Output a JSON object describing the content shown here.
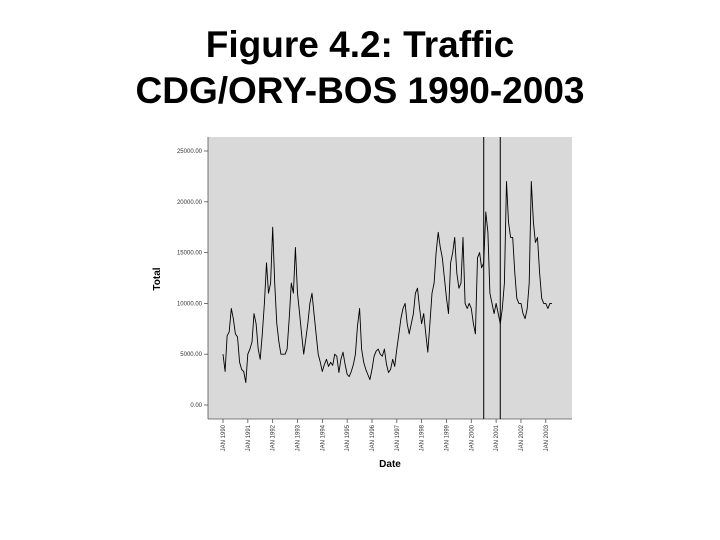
{
  "slide": {
    "title_line1": "Figure 4.2: Traffic",
    "title_line2": "CDG/ORY-BOS 1990-2003"
  },
  "chart_data": {
    "type": "line",
    "title": "Figure 4.2: Traffic CDG/ORY-BOS 1990-2003",
    "xlabel": "Date",
    "ylabel": "Total",
    "ylim": [
      0,
      25000
    ],
    "xlim": [
      "JAN 1990",
      "APR 2003"
    ],
    "grid": false,
    "legend": "none",
    "background_color": "#d9d9d9",
    "line_color": "#000000",
    "y_ticks": [
      "25000.00",
      "20000.00",
      "15000.00",
      "10000.00",
      "5000.00",
      "0.00"
    ],
    "y_tick_values": [
      25000,
      20000,
      15000,
      10000,
      5000,
      0
    ],
    "x_ticks": [
      "JAN 1990",
      "JAN 1991",
      "JAN 1992",
      "JAN 1993",
      "JAN 1994",
      "JAN 1995",
      "JAN 1996",
      "JAN 1997",
      "JAN 1998",
      "JAN 1999",
      "JAN 2000",
      "JAN 2001",
      "JAN 2002",
      "JAN 2003"
    ],
    "reference_lines": [
      "2000-07",
      "2001-03"
    ],
    "series": [
      {
        "x": [
          "1990-01",
          "1990-02",
          "1990-03",
          "1990-04",
          "1990-05",
          "1990-06",
          "1990-07",
          "1990-08",
          "1990-09",
          "1990-10",
          "1990-11",
          "1990-12",
          "1991-01",
          "1991-02",
          "1991-03",
          "1991-04",
          "1991-05",
          "1991-06",
          "1991-07",
          "1991-08",
          "1991-09",
          "1991-10",
          "1991-11",
          "1991-12",
          "1992-01",
          "1992-02",
          "1992-03",
          "1992-04",
          "1992-05",
          "1992-06",
          "1992-07",
          "1992-08",
          "1992-09",
          "1992-10",
          "1992-11",
          "1992-12",
          "1993-01",
          "1993-02",
          "1993-03",
          "1993-04",
          "1993-05",
          "1993-06",
          "1993-07",
          "1993-08",
          "1993-09",
          "1993-10",
          "1993-11",
          "1993-12",
          "1994-01",
          "1994-02",
          "1994-03",
          "1994-04",
          "1994-05",
          "1994-06",
          "1994-07",
          "1994-08",
          "1994-09",
          "1994-10",
          "1994-11",
          "1994-12",
          "1995-01",
          "1995-02",
          "1995-03",
          "1995-04",
          "1995-05",
          "1995-06",
          "1995-07",
          "1995-08",
          "1995-09",
          "1995-10",
          "1995-11",
          "1995-12",
          "1996-01",
          "1996-02",
          "1996-03",
          "1996-04",
          "1996-05",
          "1996-06",
          "1996-07",
          "1996-08",
          "1996-09",
          "1996-10",
          "1996-11",
          "1996-12",
          "1997-01",
          "1997-02",
          "1997-03",
          "1997-04",
          "1997-05",
          "1997-06",
          "1997-07",
          "1997-08",
          "1997-09",
          "1997-10",
          "1997-11",
          "1997-12",
          "1998-01",
          "1998-02",
          "1998-03",
          "1998-04",
          "1998-05",
          "1998-06",
          "1998-07",
          "1998-08",
          "1998-09",
          "1998-10",
          "1998-11",
          "1998-12",
          "1999-01",
          "1999-02",
          "1999-03",
          "1999-04",
          "1999-05",
          "1999-06",
          "1999-07",
          "1999-08",
          "1999-09",
          "1999-10",
          "1999-11",
          "1999-12",
          "2000-01",
          "2000-02",
          "2000-03",
          "2000-04",
          "2000-05",
          "2000-06",
          "2000-07",
          "2000-08",
          "2000-09",
          "2000-10",
          "2000-11",
          "2000-12",
          "2001-01",
          "2001-02",
          "2001-03",
          "2001-04",
          "2001-05",
          "2001-06",
          "2001-07",
          "2001-08",
          "2001-09",
          "2001-10",
          "2001-11",
          "2001-12",
          "2002-01",
          "2002-02",
          "2002-03",
          "2002-04",
          "2002-05",
          "2002-06",
          "2002-07",
          "2002-08",
          "2002-09",
          "2002-10",
          "2002-11",
          "2002-12",
          "2003-01",
          "2003-02",
          "2003-03",
          "2003-04"
        ],
        "y": [
          5000,
          3300,
          6800,
          7200,
          9500,
          8500,
          7000,
          6700,
          4200,
          3500,
          3300,
          2200,
          5000,
          5500,
          6200,
          9000,
          8000,
          5500,
          4500,
          7000,
          10000,
          14000,
          11000,
          12000,
          17500,
          12000,
          8000,
          6200,
          5000,
          5000,
          5000,
          5500,
          8500,
          12000,
          11000,
          15500,
          11000,
          9000,
          7000,
          5000,
          6500,
          8000,
          10000,
          11000,
          9000,
          7000,
          5000,
          4200,
          3300,
          4000,
          4500,
          3800,
          4200,
          3900,
          5000,
          4800,
          3200,
          4500,
          5200,
          4000,
          3000,
          2800,
          3300,
          4000,
          5000,
          7800,
          9500,
          5500,
          4200,
          3500,
          3000,
          2500,
          3500,
          4800,
          5300,
          5500,
          5000,
          4800,
          5500,
          4000,
          3200,
          3500,
          4500,
          3800,
          5500,
          7000,
          8500,
          9500,
          10000,
          8000,
          7000,
          8000,
          9000,
          11000,
          11500,
          9500,
          8000,
          9000,
          7000,
          5200,
          8000,
          11000,
          12000,
          15000,
          17000,
          15500,
          14500,
          12500,
          10500,
          9000,
          14000,
          15000,
          16500,
          13000,
          11500,
          12000,
          16500,
          10000,
          9500,
          10000,
          9500,
          8000,
          7000,
          14500,
          15000,
          13500,
          14000,
          19000,
          17000,
          11000,
          10000,
          9000,
          10000,
          9000,
          8000,
          9500,
          12000,
          22000,
          18000,
          16500,
          16500,
          13000,
          10500,
          10000,
          10000,
          9000,
          8500,
          9500,
          12000,
          22000,
          18000,
          16000,
          16500,
          13000,
          10500,
          10000,
          10000,
          9500,
          10000,
          10000
        ]
      }
    ]
  }
}
